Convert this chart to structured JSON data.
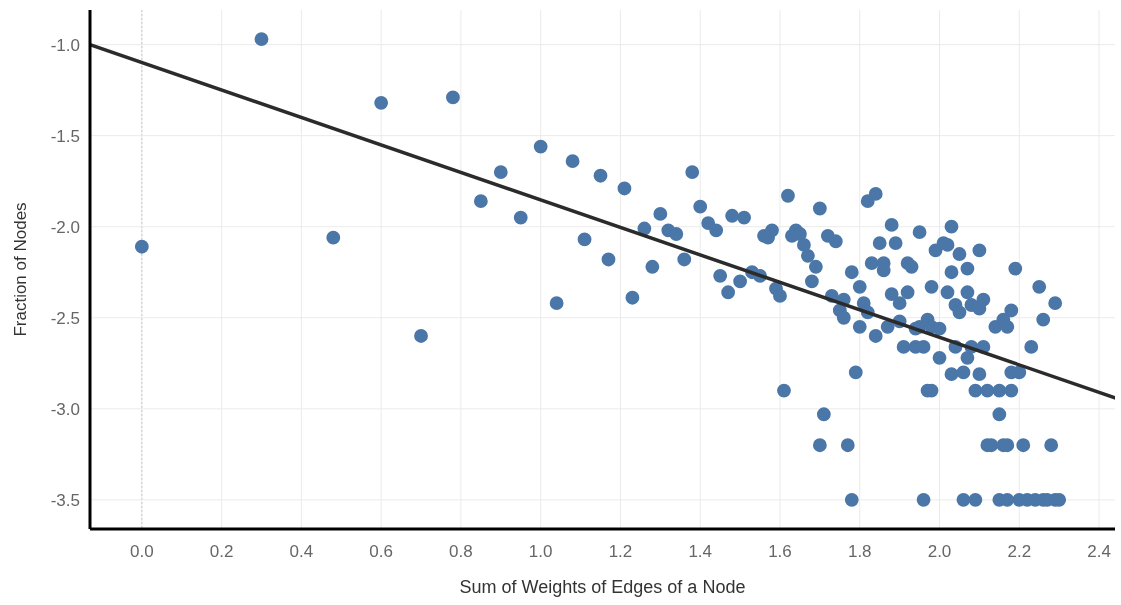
{
  "chart_data": {
    "type": "scatter",
    "xlabel": "Sum of Weights of Edges of a Node",
    "ylabel": "Fraction of Nodes",
    "xlim": [
      -0.13,
      2.44
    ],
    "ylim": [
      -3.66,
      -0.81
    ],
    "xticks": [
      {
        "value": 0,
        "label": "0.0"
      },
      0.2,
      0.4,
      0.6,
      0.8,
      {
        "value": 1,
        "label": "1.0"
      },
      1.2,
      1.4,
      1.6,
      1.8,
      {
        "value": 2,
        "label": "2.0"
      },
      2.2,
      2.4
    ],
    "yticks": [
      {
        "value": -1,
        "label": "-1.0"
      },
      -1.5,
      {
        "value": -2,
        "label": "-2.0"
      },
      -2.5,
      {
        "value": -3,
        "label": "-3.0"
      },
      -3.5
    ],
    "grid": true,
    "ref_lines": [
      {
        "axis": "x",
        "value": 0,
        "color": "#c8c8c8",
        "line_style": "dotted"
      }
    ],
    "series": [
      {
        "marker": "circle",
        "color": "#4a76a8",
        "x": [
          0.0,
          0.3,
          0.48,
          0.6,
          0.7,
          0.78,
          0.85,
          0.9,
          0.95,
          1.0,
          1.04,
          1.08,
          1.11,
          1.15,
          1.17,
          1.21,
          1.23,
          1.26,
          1.28,
          1.3,
          1.32,
          1.34,
          1.36,
          1.38,
          1.4,
          1.42,
          1.44,
          1.45,
          1.47,
          1.48,
          1.5,
          1.51,
          1.53,
          1.55,
          1.56,
          1.57,
          1.58,
          1.59,
          1.6,
          1.61,
          1.62,
          1.63,
          1.64,
          1.65,
          1.66,
          1.67,
          1.68,
          1.69,
          1.7,
          1.71,
          1.7,
          1.72,
          1.73,
          1.74,
          1.75,
          1.76,
          1.76,
          1.77,
          1.78,
          1.78,
          1.79,
          1.8,
          1.8,
          1.81,
          1.82,
          1.82,
          1.83,
          1.84,
          1.84,
          1.85,
          1.86,
          1.86,
          1.87,
          1.88,
          1.88,
          1.89,
          1.9,
          1.9,
          1.91,
          1.92,
          1.92,
          1.93,
          1.94,
          1.94,
          1.95,
          1.95,
          1.96,
          1.96,
          1.97,
          1.97,
          1.98,
          1.98,
          1.98,
          1.99,
          2.0,
          2.0,
          2.01,
          2.02,
          2.02,
          2.03,
          2.03,
          2.03,
          2.04,
          2.04,
          2.05,
          2.05,
          2.06,
          2.06,
          2.07,
          2.07,
          2.07,
          2.08,
          2.08,
          2.09,
          2.09,
          2.1,
          2.1,
          2.1,
          2.11,
          2.11,
          2.12,
          2.12,
          2.13,
          2.14,
          2.15,
          2.15,
          2.15,
          2.16,
          2.16,
          2.17,
          2.17,
          2.17,
          2.18,
          2.18,
          2.18,
          2.19,
          2.2,
          2.2,
          2.21,
          2.22,
          2.23,
          2.24,
          2.25,
          2.26,
          2.26,
          2.27,
          2.28,
          2.29,
          2.29,
          2.3
        ],
        "values": [
          -2.11,
          -0.97,
          -2.06,
          -1.32,
          -2.6,
          -1.29,
          -1.86,
          -1.7,
          -1.95,
          -1.56,
          -2.42,
          -1.64,
          -2.07,
          -1.72,
          -2.18,
          -1.79,
          -2.39,
          -2.01,
          -2.22,
          -1.93,
          -2.02,
          -2.04,
          -2.18,
          -1.7,
          -1.89,
          -1.98,
          -2.02,
          -2.27,
          -2.36,
          -1.94,
          -2.3,
          -1.95,
          -2.25,
          -2.27,
          -2.05,
          -2.06,
          -2.02,
          -2.34,
          -2.38,
          -2.9,
          -1.83,
          -2.05,
          -2.02,
          -2.04,
          -2.1,
          -2.16,
          -2.3,
          -2.22,
          -1.9,
          -3.03,
          -3.2,
          -2.05,
          -2.38,
          -2.08,
          -2.46,
          -2.4,
          -2.5,
          -3.2,
          -2.25,
          -3.5,
          -2.8,
          -2.33,
          -2.55,
          -2.42,
          -1.86,
          -2.47,
          -2.2,
          -1.82,
          -2.6,
          -2.09,
          -2.24,
          -2.2,
          -2.55,
          -2.37,
          -1.99,
          -2.09,
          -2.42,
          -2.52,
          -2.66,
          -2.2,
          -2.36,
          -2.22,
          -2.56,
          -2.66,
          -2.03,
          -2.55,
          -2.66,
          -3.5,
          -2.51,
          -2.9,
          -2.33,
          -2.55,
          -2.9,
          -2.13,
          -2.56,
          -2.72,
          -2.09,
          -2.1,
          -2.36,
          -2.0,
          -2.25,
          -2.81,
          -2.43,
          -2.66,
          -2.15,
          -2.47,
          -2.8,
          -3.5,
          -2.23,
          -2.36,
          -2.72,
          -2.43,
          -2.66,
          -2.9,
          -3.5,
          -2.13,
          -2.45,
          -2.81,
          -2.4,
          -2.66,
          -2.9,
          -3.2,
          -3.2,
          -2.55,
          -3.03,
          -2.9,
          -3.5,
          -2.51,
          -3.2,
          -2.55,
          -3.2,
          -3.5,
          -2.46,
          -2.8,
          -2.9,
          -2.23,
          -2.8,
          -3.5,
          -3.2,
          -3.5,
          -2.66,
          -3.5,
          -2.33,
          -2.51,
          -3.5,
          -3.5,
          -3.2,
          -2.42,
          -3.5,
          -3.5
        ]
      },
      {
        "type": "line",
        "color": "#2b2b2b",
        "x": [
          -0.13,
          2.44
        ],
        "values": [
          -1.0,
          -2.94
        ]
      }
    ]
  }
}
